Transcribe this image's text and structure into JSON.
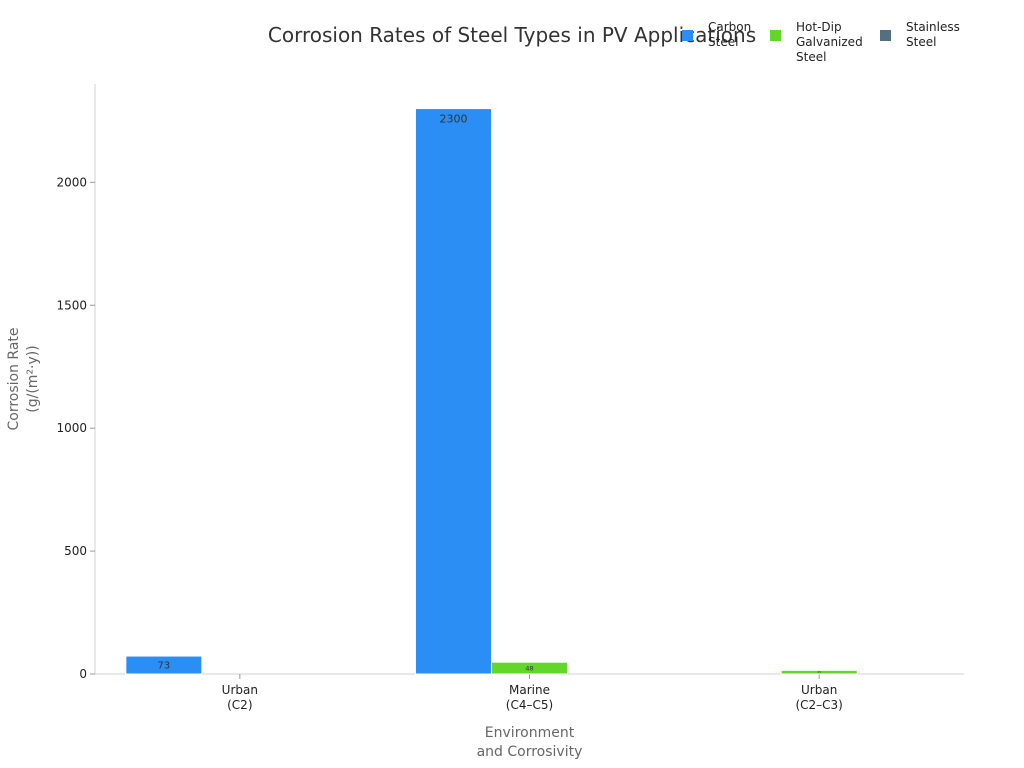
{
  "chart_data": {
    "type": "bar",
    "title": "Corrosion Rates of Steel Types in PV Applications",
    "xlabel": [
      "Environment",
      "and Corrosivity"
    ],
    "ylabel": [
      "Corrosion Rate",
      "(g/(m²·y))"
    ],
    "categories": [
      [
        "Urban",
        "(C2)"
      ],
      [
        "Marine",
        "(C4–C5)"
      ],
      [
        "Urban",
        "(C2–C3)"
      ]
    ],
    "ylim": [
      0,
      2400
    ],
    "yticks": [
      0,
      500,
      1000,
      1500,
      2000
    ],
    "grid": false,
    "legend_position": "top-right",
    "series": [
      {
        "name": [
          "Carbon",
          "Steel"
        ],
        "color": "#2b8ef5",
        "values": [
          73,
          2300,
          0
        ],
        "labels": [
          "73",
          "2300",
          ""
        ]
      },
      {
        "name": [
          "Hot-Dip",
          "Galvanized",
          "Steel"
        ],
        "color": "#63d62a",
        "values": [
          0,
          48,
          15
        ],
        "labels": [
          "",
          "48",
          "15"
        ]
      },
      {
        "name": [
          "Stainless",
          "Steel"
        ],
        "color": "#52707f",
        "values": [
          0,
          0,
          0
        ],
        "labels": [
          "",
          "",
          ""
        ]
      }
    ]
  }
}
